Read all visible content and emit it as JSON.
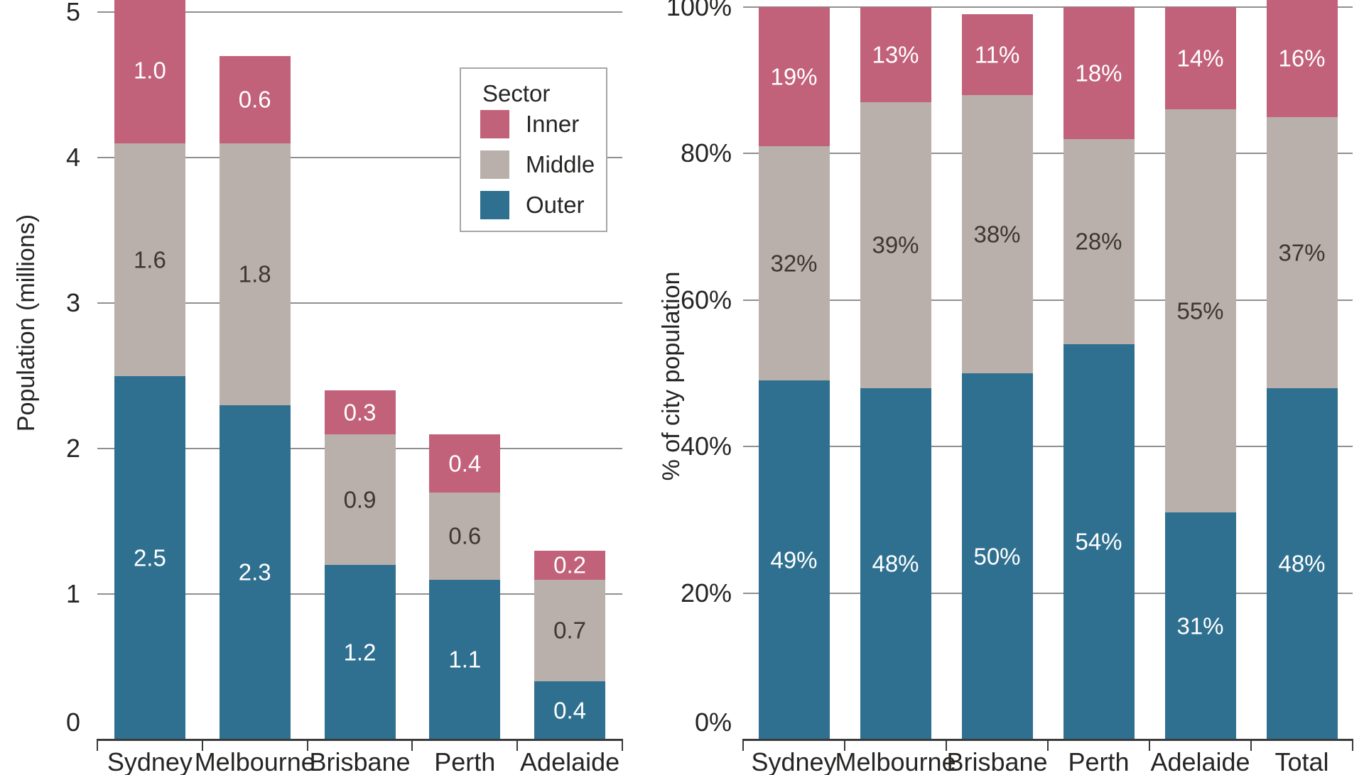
{
  "figure": {
    "description": "Two stacked bar charts of Australian city population by urban sector"
  },
  "legend": {
    "title": "Sector",
    "entries": [
      {
        "label": "Inner",
        "color": "#c2617a"
      },
      {
        "label": "Middle",
        "color": "#b9afab"
      },
      {
        "label": "Outer",
        "color": "#2f7090"
      }
    ]
  },
  "colors": {
    "inner": "#c2617a",
    "middle": "#b9afab",
    "outer": "#2f7090",
    "gridline": "#8f8f8f",
    "axis": "#3a3a3a",
    "label_on_middle": "#3c3733",
    "label_on_dark": "#ffffff"
  },
  "chart_data": [
    {
      "type": "bar",
      "stacked": true,
      "title": "",
      "xlabel": "",
      "ylabel": "Population (millions)",
      "ylim": [
        0,
        5
      ],
      "grid": true,
      "legend_position": "upper right inside plot",
      "ytick_labels": [
        "0",
        "1",
        "2",
        "3",
        "4",
        "5"
      ],
      "categories": [
        "Sydney",
        "Melbourne",
        "Brisbane",
        "Perth",
        "Adelaide"
      ],
      "series": [
        {
          "name": "Outer",
          "values": [
            2.5,
            2.3,
            1.2,
            1.1,
            0.4
          ]
        },
        {
          "name": "Middle",
          "values": [
            1.6,
            1.8,
            0.9,
            0.6,
            0.7
          ]
        },
        {
          "name": "Inner",
          "values": [
            1.0,
            0.6,
            0.3,
            0.4,
            0.2
          ]
        }
      ],
      "bar_labels": [
        [
          "2.5",
          "2.3",
          "1.2",
          "1.1",
          "0.4"
        ],
        [
          "1.6",
          "1.8",
          "0.9",
          "0.6",
          "0.7"
        ],
        [
          "1.0",
          "0.6",
          "0.3",
          "0.4",
          "0.2"
        ]
      ]
    },
    {
      "type": "bar",
      "stacked": true,
      "title": "",
      "xlabel": "",
      "ylabel": "% of city population",
      "ylim": [
        0,
        100
      ],
      "grid": true,
      "ytick_labels": [
        "0%",
        "20%",
        "40%",
        "60%",
        "80%",
        "100%"
      ],
      "categories": [
        "Sydney",
        "Melbourne",
        "Brisbane",
        "Perth",
        "Adelaide",
        "Total"
      ],
      "series": [
        {
          "name": "Outer",
          "values": [
            49,
            48,
            50,
            54,
            31,
            48
          ]
        },
        {
          "name": "Middle",
          "values": [
            32,
            39,
            38,
            28,
            55,
            37
          ]
        },
        {
          "name": "Inner",
          "values": [
            19,
            13,
            11,
            18,
            14,
            16
          ]
        }
      ],
      "bar_labels": [
        [
          "49%",
          "48%",
          "50%",
          "54%",
          "31%",
          "48%"
        ],
        [
          "32%",
          "39%",
          "38%",
          "28%",
          "55%",
          "37%"
        ],
        [
          "19%",
          "13%",
          "11%",
          "18%",
          "14%",
          "16%"
        ]
      ]
    }
  ]
}
